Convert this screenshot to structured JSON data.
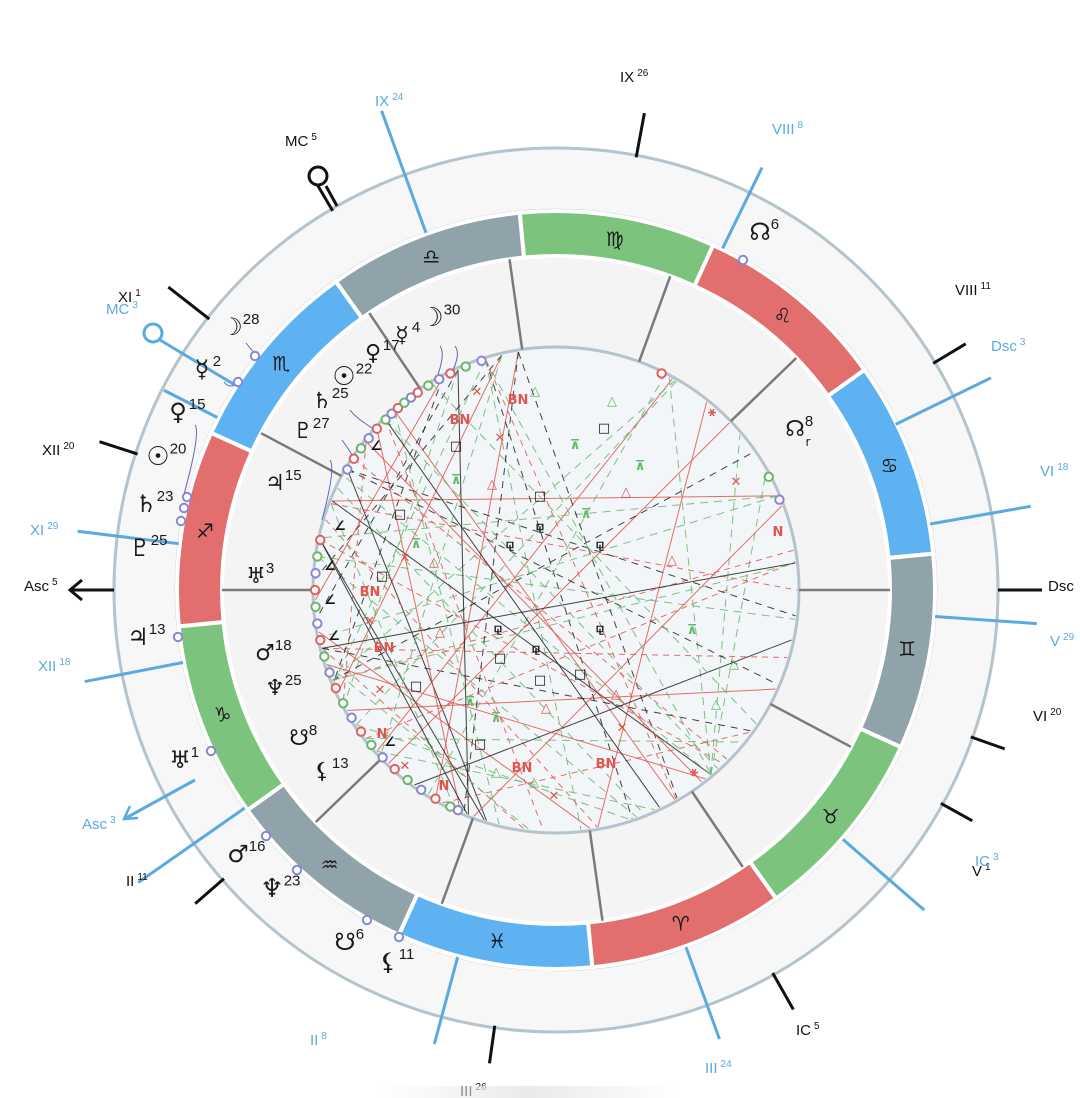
{
  "colors": {
    "black": "#111111",
    "blue": "#5aaadf",
    "ring_outline": "#b4c3cc",
    "ring_fill": "#f7f7f7",
    "inner_fill": "#f2f6f9",
    "fire": "#e26e6e",
    "earth": "#7cc47e",
    "air": "#91a3aa",
    "water": "#5eb2f2",
    "marker": "#8a86d6",
    "aspect_red": "#e0554f",
    "aspect_green": "#68b66b"
  },
  "signs": [
    {
      "name": "virgo",
      "glyph": "♍"
    },
    {
      "name": "leo",
      "glyph": "♌"
    },
    {
      "name": "cancer",
      "glyph": "♋"
    },
    {
      "name": "gemini",
      "glyph": "♊"
    },
    {
      "name": "taurus",
      "glyph": "♉"
    },
    {
      "name": "aries",
      "glyph": "♈"
    },
    {
      "name": "pisces",
      "glyph": "♓"
    },
    {
      "name": "aquarius",
      "glyph": "♒"
    },
    {
      "name": "capricorn",
      "glyph": "♑"
    },
    {
      "name": "sagittarius",
      "glyph": "♐"
    },
    {
      "name": "scorpio",
      "glyph": "♏"
    },
    {
      "name": "libra",
      "glyph": "♎"
    }
  ],
  "black_labels": [
    {
      "text": "IX",
      "sup": "26"
    },
    {
      "text": "MC",
      "sup": "5"
    },
    {
      "text": "XI",
      "sup": "1"
    },
    {
      "text": "XII",
      "sup": "20"
    },
    {
      "text": "Asc",
      "sup": "5"
    },
    {
      "text": "II",
      "sup": "11"
    },
    {
      "text": "III",
      "sup": "26"
    },
    {
      "text": "IC",
      "sup": "5"
    },
    {
      "text": "V",
      "sup": "1"
    },
    {
      "text": "VI",
      "sup": "20"
    },
    {
      "text": "Dsc",
      "sup": ""
    },
    {
      "text": "VIII",
      "sup": "11"
    }
  ],
  "blue_labels": [
    {
      "text": "IX",
      "sup": "24"
    },
    {
      "text": "VIII",
      "sup": "8"
    },
    {
      "text": "Dsc",
      "sup": "3"
    },
    {
      "text": "VI",
      "sup": "18"
    },
    {
      "text": "V",
      "sup": "29"
    },
    {
      "text": "IC",
      "sup": "3"
    },
    {
      "text": "III",
      "sup": "24"
    },
    {
      "text": "II",
      "sup": "8"
    },
    {
      "text": "Asc",
      "sup": "3"
    },
    {
      "text": "XII",
      "sup": "18"
    },
    {
      "text": "XI",
      "sup": "29"
    },
    {
      "text": "MC",
      "sup": "3"
    }
  ],
  "outer_planets": [
    {
      "name": "north-node",
      "glyph": "☊",
      "deg": "6"
    },
    {
      "name": "moon",
      "glyph": "☽",
      "deg": "28"
    },
    {
      "name": "mercury",
      "glyph": "☿",
      "deg": "2"
    },
    {
      "name": "venus",
      "glyph": "♀",
      "deg": "15"
    },
    {
      "name": "sun",
      "glyph": "☉",
      "deg": "20"
    },
    {
      "name": "saturn",
      "glyph": "♄",
      "deg": "23"
    },
    {
      "name": "pluto",
      "glyph": "♇",
      "deg": "25"
    },
    {
      "name": "jupiter",
      "glyph": "♃",
      "deg": "13"
    },
    {
      "name": "uranus",
      "glyph": "♅",
      "deg": "1"
    },
    {
      "name": "mars",
      "glyph": "♂",
      "deg": "16"
    },
    {
      "name": "neptune",
      "glyph": "♆",
      "deg": "23"
    },
    {
      "name": "south-node",
      "glyph": "☋",
      "deg": "6"
    },
    {
      "name": "lilith",
      "glyph": "⚸",
      "deg": "11"
    }
  ],
  "inner_planets": [
    {
      "name": "moon",
      "glyph": "☽",
      "deg": "30"
    },
    {
      "name": "mercury",
      "glyph": "☿",
      "deg": "4"
    },
    {
      "name": "venus",
      "glyph": "♀",
      "deg": "17"
    },
    {
      "name": "sun",
      "glyph": "☉",
      "deg": "22"
    },
    {
      "name": "saturn",
      "glyph": "♄",
      "deg": "25"
    },
    {
      "name": "pluto",
      "glyph": "♇",
      "deg": "27"
    },
    {
      "name": "jupiter",
      "glyph": "♃",
      "deg": "15"
    },
    {
      "name": "uranus",
      "glyph": "♅",
      "deg": "3"
    },
    {
      "name": "mars",
      "glyph": "♂",
      "deg": "18"
    },
    {
      "name": "neptune",
      "glyph": "♆",
      "deg": "25"
    },
    {
      "name": "south-node",
      "glyph": "☋",
      "deg": "8"
    },
    {
      "name": "lilith",
      "glyph": "⚸",
      "deg": "13"
    },
    {
      "name": "north-node",
      "glyph": "☊",
      "deg": "8"
    },
    {
      "name": "retrograde",
      "glyph": "r",
      "deg": ""
    }
  ],
  "aspect_glyphs": {
    "square": "□",
    "trine": "△",
    "opposition": "✕",
    "sextile": "⚹",
    "bn": "BN",
    "n": "N",
    "quincunx": "⊼",
    "semisquare": "∠",
    "sesquiquadrate": "⚼"
  }
}
